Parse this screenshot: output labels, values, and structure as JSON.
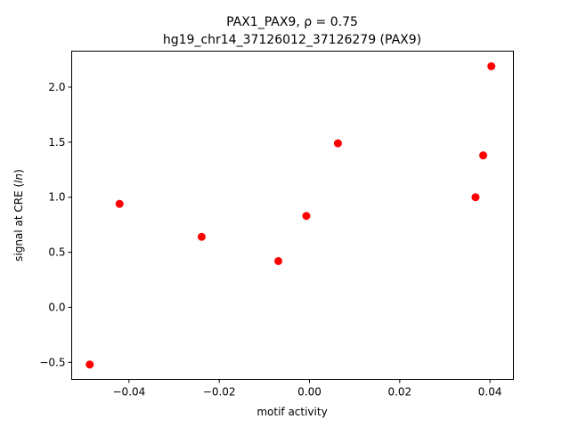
{
  "chart_data": {
    "type": "scatter",
    "title_line1": "PAX1_PAX9, ρ = 0.75",
    "title_line2": "hg19_chr14_37126012_37126279 (PAX9)",
    "xlabel": "motif activity",
    "ylabel_prefix": "signal at CRE (",
    "ylabel_italic": "ln",
    "ylabel_suffix": ")",
    "xlim": [
      -0.0527,
      0.0452
    ],
    "ylim": [
      -0.655,
      2.327
    ],
    "xticks": [
      -0.04,
      -0.02,
      0.0,
      0.02,
      0.04
    ],
    "xtick_labels": [
      "−0.04",
      "−0.02",
      "0.00",
      "0.02",
      "0.04"
    ],
    "yticks": [
      -0.5,
      0.0,
      0.5,
      1.0,
      1.5,
      2.0
    ],
    "ytick_labels": [
      "−0.5",
      "0.0",
      "0.5",
      "1.0",
      "1.5",
      "2.0"
    ],
    "grid": false,
    "marker_color": "#ff0000",
    "points": [
      {
        "x": -0.0487,
        "y": -0.52
      },
      {
        "x": -0.0421,
        "y": 0.94
      },
      {
        "x": -0.0239,
        "y": 0.64
      },
      {
        "x": -0.0069,
        "y": 0.42
      },
      {
        "x": -0.0007,
        "y": 0.83
      },
      {
        "x": 0.0063,
        "y": 1.49
      },
      {
        "x": 0.0368,
        "y": 1.0
      },
      {
        "x": 0.0385,
        "y": 1.38
      },
      {
        "x": 0.0403,
        "y": 2.19
      }
    ]
  }
}
